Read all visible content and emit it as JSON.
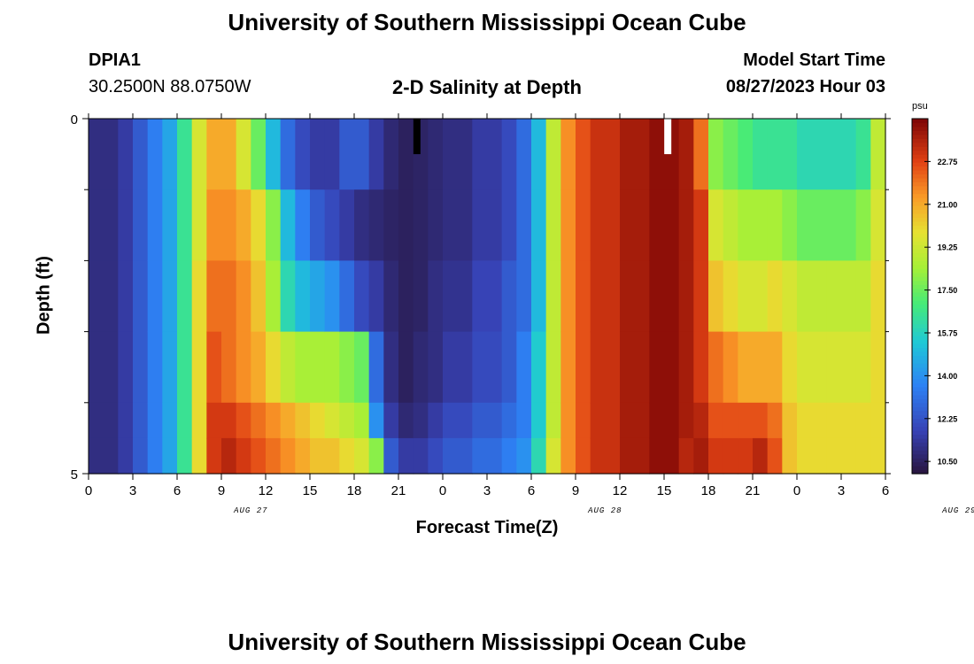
{
  "page": {
    "title_top": "University of Southern Mississippi Ocean Cube",
    "title_bottom": "University of Southern Mississippi Ocean Cube",
    "station": "DPIA1",
    "coords": "30.2500N  88.0750W",
    "subtitle": "2-D Salinity at Depth",
    "start_label": "Model Start Time",
    "start_value": "08/27/2023 Hour 03"
  },
  "chart_data": {
    "type": "heatmap",
    "xlabel": "Forecast Time(Z)",
    "ylabel": "Depth (ft)",
    "x_tick_labels": [
      "0",
      "3",
      "6",
      "9",
      "12",
      "15",
      "18",
      "21",
      "0",
      "3",
      "6",
      "9",
      "12",
      "15",
      "18",
      "21",
      "0",
      "3",
      "6"
    ],
    "x_date_labels": [
      {
        "label": "AUG 27",
        "at_hour": 11
      },
      {
        "label": "AUG 28",
        "at_hour": 35
      },
      {
        "label": "AUG 29",
        "at_hour": 59
      }
    ],
    "x_range_hours": [
      0,
      54
    ],
    "y_range_ft": [
      0,
      5
    ],
    "y_tick_labels": [
      {
        "value": 0,
        "label": "0"
      },
      {
        "value": 5,
        "label": "5"
      }
    ],
    "y_minor_ticks": [
      1,
      2,
      3,
      4
    ],
    "colorbar": {
      "unit": "psu",
      "range": [
        10.0,
        24.5
      ],
      "tick_values": [
        22.75,
        21.0,
        19.25,
        17.5,
        15.75,
        14.0,
        12.25,
        10.5
      ],
      "tick_labels": [
        "22.75",
        "21.00",
        "19.25",
        "17.50",
        "15.75",
        "14.00",
        "12.25",
        "10.50"
      ]
    },
    "depth_rows": [
      0,
      1,
      2,
      3,
      4,
      4.5
    ],
    "columns": [
      {
        "hour_start": 0,
        "values": [
          11.0,
          11.0,
          11.0,
          11.0,
          11.0,
          11.0
        ]
      },
      {
        "hour_start": 2,
        "values": [
          11.5,
          11.5,
          11.5,
          11.5,
          11.5,
          11.5
        ]
      },
      {
        "hour_start": 3,
        "values": [
          12.5,
          12.5,
          12.5,
          12.5,
          12.5,
          12.5
        ]
      },
      {
        "hour_start": 4,
        "values": [
          13.5,
          13.5,
          13.5,
          13.5,
          13.5,
          13.5
        ]
      },
      {
        "hour_start": 5,
        "values": [
          14.5,
          14.5,
          14.5,
          14.5,
          14.5,
          14.5
        ]
      },
      {
        "hour_start": 6,
        "values": [
          16.5,
          16.5,
          16.5,
          16.5,
          16.5,
          16.5
        ]
      },
      {
        "hour_start": 7,
        "values": [
          19.5,
          19.5,
          20.0,
          20.0,
          20.0,
          20.0
        ]
      },
      {
        "hour_start": 8,
        "values": [
          21.0,
          21.5,
          22.0,
          22.5,
          23.0,
          23.0
        ]
      },
      {
        "hour_start": 9,
        "values": [
          21.0,
          21.5,
          22.0,
          22.0,
          23.0,
          23.5
        ]
      },
      {
        "hour_start": 10,
        "values": [
          19.5,
          21.0,
          21.5,
          21.5,
          22.5,
          23.0
        ]
      },
      {
        "hour_start": 11,
        "values": [
          17.5,
          20.0,
          20.5,
          21.0,
          22.0,
          22.5
        ]
      },
      {
        "hour_start": 12,
        "values": [
          15.0,
          18.0,
          18.5,
          20.0,
          21.5,
          22.0
        ]
      },
      {
        "hour_start": 13,
        "values": [
          13.0,
          15.0,
          16.0,
          19.0,
          21.0,
          21.5
        ]
      },
      {
        "hour_start": 14,
        "values": [
          12.0,
          13.5,
          15.0,
          18.5,
          20.5,
          21.0
        ]
      },
      {
        "hour_start": 15,
        "values": [
          11.5,
          12.5,
          14.5,
          18.5,
          20.0,
          20.5
        ]
      },
      {
        "hour_start": 16,
        "values": [
          11.5,
          12.0,
          14.0,
          18.5,
          19.5,
          20.5
        ]
      },
      {
        "hour_start": 17,
        "values": [
          12.5,
          11.5,
          13.0,
          18.0,
          19.0,
          20.0
        ]
      },
      {
        "hour_start": 18,
        "values": [
          12.5,
          11.0,
          12.0,
          17.5,
          18.5,
          19.5
        ]
      },
      {
        "hour_start": 19,
        "values": [
          11.5,
          10.8,
          11.5,
          13.0,
          14.0,
          18.0
        ]
      },
      {
        "hour_start": 20,
        "values": [
          10.8,
          10.6,
          10.8,
          11.0,
          11.5,
          12.5
        ]
      },
      {
        "hour_start": 21,
        "values": [
          10.5,
          10.5,
          10.5,
          10.5,
          10.8,
          11.5
        ]
      },
      {
        "hour_start": 22,
        "values": [
          10.6,
          10.6,
          10.6,
          10.8,
          11.0,
          11.5
        ]
      },
      {
        "hour_start": 23,
        "values": [
          10.8,
          10.8,
          11.0,
          11.0,
          11.5,
          12.0
        ]
      },
      {
        "hour_start": 24,
        "values": [
          11.0,
          11.0,
          11.2,
          11.5,
          12.0,
          12.5
        ]
      },
      {
        "hour_start": 26,
        "values": [
          11.5,
          11.5,
          11.8,
          12.0,
          12.5,
          13.0
        ]
      },
      {
        "hour_start": 28,
        "values": [
          12.0,
          12.0,
          12.5,
          12.5,
          13.0,
          13.5
        ]
      },
      {
        "hour_start": 29,
        "values": [
          13.0,
          13.0,
          13.0,
          13.5,
          13.5,
          14.0
        ]
      },
      {
        "hour_start": 30,
        "values": [
          15.0,
          15.0,
          15.0,
          15.5,
          15.5,
          16.0
        ]
      },
      {
        "hour_start": 31,
        "values": [
          19.0,
          19.0,
          19.0,
          19.0,
          19.0,
          19.5
        ]
      },
      {
        "hour_start": 32,
        "values": [
          21.5,
          21.5,
          21.5,
          21.5,
          21.5,
          21.5
        ]
      },
      {
        "hour_start": 33,
        "values": [
          22.5,
          22.5,
          22.5,
          22.5,
          22.5,
          22.5
        ]
      },
      {
        "hour_start": 34,
        "values": [
          23.2,
          23.2,
          23.2,
          23.2,
          23.2,
          23.2
        ]
      },
      {
        "hour_start": 36,
        "values": [
          23.8,
          23.8,
          23.8,
          23.8,
          23.8,
          23.8
        ]
      },
      {
        "hour_start": 38,
        "values": [
          24.2,
          24.2,
          24.2,
          24.2,
          24.2,
          24.2
        ]
      },
      {
        "hour_start": 40,
        "values": [
          23.8,
          23.8,
          23.8,
          23.8,
          23.8,
          23.5
        ]
      },
      {
        "hour_start": 41,
        "values": [
          22.0,
          23.0,
          23.0,
          23.0,
          23.5,
          23.8
        ]
      },
      {
        "hour_start": 42,
        "values": [
          18.0,
          19.5,
          20.5,
          22.0,
          22.5,
          23.0
        ]
      },
      {
        "hour_start": 43,
        "values": [
          17.5,
          19.0,
          20.0,
          21.5,
          22.5,
          23.0
        ]
      },
      {
        "hour_start": 44,
        "values": [
          17.0,
          18.5,
          19.5,
          21.0,
          22.5,
          23.0
        ]
      },
      {
        "hour_start": 45,
        "values": [
          16.5,
          18.5,
          19.5,
          21.0,
          22.5,
          23.5
        ]
      },
      {
        "hour_start": 46,
        "values": [
          16.5,
          18.5,
          20.0,
          21.0,
          22.0,
          22.5
        ]
      },
      {
        "hour_start": 47,
        "values": [
          16.5,
          18.0,
          19.5,
          20.0,
          20.5,
          20.5
        ]
      },
      {
        "hour_start": 48,
        "values": [
          16.0,
          17.5,
          19.0,
          19.5,
          20.0,
          20.0
        ]
      },
      {
        "hour_start": 50,
        "values": [
          16.0,
          17.5,
          19.0,
          19.5,
          20.0,
          20.0
        ]
      },
      {
        "hour_start": 52,
        "values": [
          16.5,
          18.0,
          19.0,
          19.5,
          20.0,
          20.0
        ]
      },
      {
        "hour_start": 53,
        "values": [
          19.0,
          19.5,
          20.0,
          20.0,
          20.0,
          20.0
        ]
      }
    ],
    "column_end_hour": 54,
    "markers": [
      {
        "hour": 22.25,
        "color": "#000000",
        "from_ft": 0,
        "to_ft": 0.5
      },
      {
        "hour": 39.25,
        "color": "#ffffff",
        "from_ft": 0,
        "to_ft": 0.5
      }
    ]
  }
}
